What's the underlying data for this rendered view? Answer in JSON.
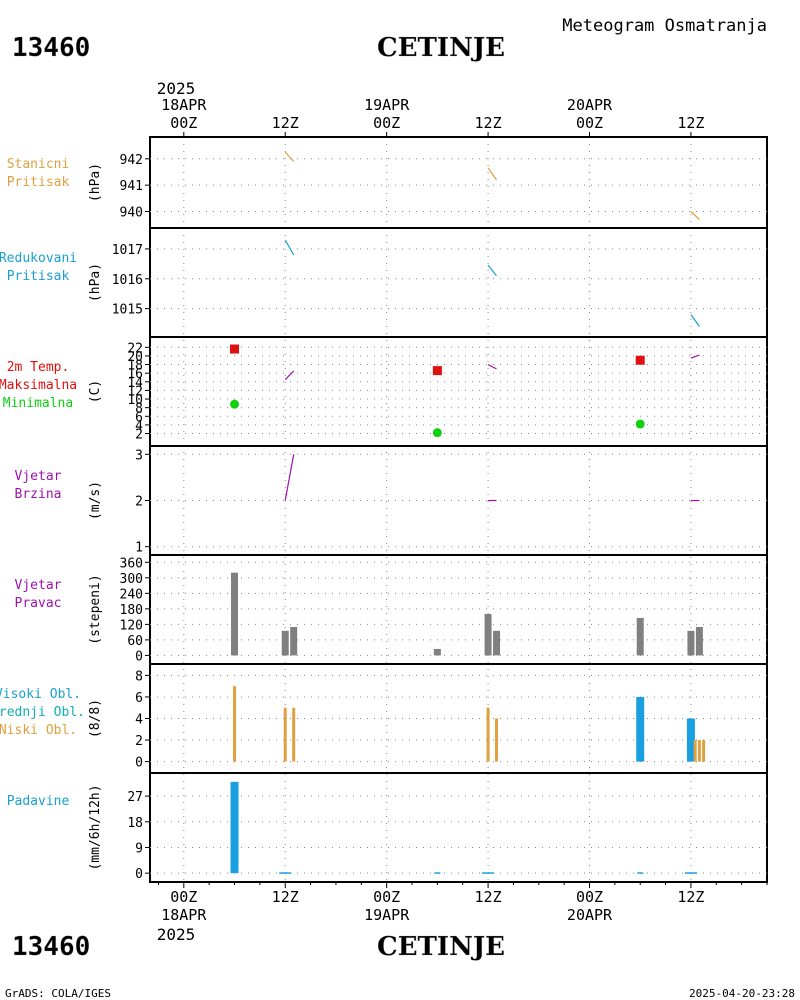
{
  "header": {
    "title": "Meteogram Osmatranja",
    "station_id": "13460",
    "station_name": "CETINJE"
  },
  "footer": {
    "station_id": "13460",
    "station_name": "CETINJE",
    "credit": "GrADS: COLA/IGES",
    "timestamp": "2025-04-20-23:28"
  },
  "time_axis": {
    "top_year": "2025",
    "bottom_year": "2025",
    "ticks": [
      {
        "hour": 0,
        "label": "00Z",
        "date": "18APR"
      },
      {
        "hour": 12,
        "label": "12Z",
        "date": ""
      },
      {
        "hour": 24,
        "label": "00Z",
        "date": "19APR"
      },
      {
        "hour": 36,
        "label": "12Z",
        "date": ""
      },
      {
        "hour": 48,
        "label": "00Z",
        "date": "20APR"
      },
      {
        "hour": 60,
        "label": "12Z",
        "date": ""
      }
    ]
  },
  "colors": {
    "orange": "#e0a040",
    "cyan": "#1aa0d0",
    "red": "#e01010",
    "green": "#10d010",
    "purple": "#a010b0",
    "gray": "#808080",
    "blue": "#1aa0e0",
    "teal": "#10b0b0"
  },
  "chart_data": [
    {
      "type": "line",
      "labels": [
        {
          "text": "Stanicni",
          "color": "#e0a040"
        },
        {
          "text": "Pritisak",
          "color": "#e0a040"
        }
      ],
      "ylabel": "(hPa)",
      "ylim": [
        939.6,
        942.6
      ],
      "yticks": [
        940,
        941,
        942
      ],
      "series": [
        {
          "color": "#e0a040",
          "segments": [
            [
              [
                12,
                942.25
              ],
              [
                13,
                941.9
              ]
            ],
            [
              [
                36,
                941.65
              ],
              [
                37,
                941.2
              ]
            ],
            [
              [
                60,
                940.0
              ],
              [
                61,
                939.7
              ]
            ]
          ]
        }
      ]
    },
    {
      "type": "line",
      "labels": [
        {
          "text": "Redukovani",
          "color": "#1aa0d0"
        },
        {
          "text": "Pritisak",
          "color": "#1aa0d0"
        }
      ],
      "ylabel": "(hPa)",
      "ylim": [
        1014.25,
        1017.5
      ],
      "yticks": [
        1015,
        1016,
        1017
      ],
      "series": [
        {
          "color": "#1aa0d0",
          "segments": [
            [
              [
                12,
                1017.3
              ],
              [
                13,
                1016.8
              ]
            ],
            [
              [
                36,
                1016.45
              ],
              [
                37,
                1016.1
              ]
            ],
            [
              [
                60,
                1014.8
              ],
              [
                61,
                1014.4
              ]
            ]
          ]
        }
      ]
    },
    {
      "type": "scatter",
      "labels": [
        {
          "text": "2m Temp.",
          "color": "#e01010"
        },
        {
          "text": "Maksimalna",
          "color": "#e01010"
        },
        {
          "text": "Minimalna",
          "color": "#10d010"
        }
      ],
      "ylabel": "(C)",
      "ylim": [
        0.5,
        23
      ],
      "yticks": [
        2,
        4,
        6,
        8,
        10,
        12,
        14,
        16,
        18,
        20,
        22
      ],
      "series": [
        {
          "color": "#a010b0",
          "segments": [
            [
              [
                12,
                14.5
              ],
              [
                13,
                16.5
              ]
            ],
            [
              [
                36,
                18
              ],
              [
                37,
                17
              ]
            ],
            [
              [
                60,
                19.5
              ],
              [
                61,
                20.2
              ]
            ]
          ]
        }
      ],
      "markers": [
        {
          "name": "Maksimalna",
          "shape": "square",
          "color": "#e01010",
          "points": [
            [
              6,
              21.6
            ],
            [
              30,
              16.6
            ],
            [
              54,
              19.0
            ]
          ]
        },
        {
          "name": "Minimalna",
          "shape": "circle",
          "color": "#10d010",
          "points": [
            [
              6,
              8.8
            ],
            [
              30,
              2.2
            ],
            [
              54,
              4.2
            ]
          ]
        }
      ]
    },
    {
      "type": "line",
      "labels": [
        {
          "text": "Vjetar",
          "color": "#a010b0"
        },
        {
          "text": "Brzina",
          "color": "#a010b0"
        }
      ],
      "ylabel": "(m/s)",
      "ylim": [
        0.95,
        3.05
      ],
      "yticks": [
        1,
        2,
        3
      ],
      "series": [
        {
          "color": "#a010b0",
          "segments": [
            [
              [
                12,
                2.0
              ],
              [
                13,
                3.0
              ]
            ],
            [
              [
                36,
                2.0
              ],
              [
                37,
                2.0
              ]
            ],
            [
              [
                60,
                2.0
              ],
              [
                61,
                2.0
              ]
            ]
          ]
        }
      ]
    },
    {
      "type": "bar",
      "labels": [
        {
          "text": "Vjetar",
          "color": "#a010b0"
        },
        {
          "text": "Pravac",
          "color": "#a010b0"
        }
      ],
      "ylabel": "(stepeni)",
      "ylim": [
        -10,
        365
      ],
      "yticks": [
        0,
        60,
        120,
        180,
        240,
        300,
        360
      ],
      "ytick_labels": [
        "0",
        "60",
        "120",
        "180",
        "240",
        "300",
        "360"
      ],
      "bars": [
        {
          "x": 6,
          "value": 320,
          "color": "#808080"
        },
        {
          "x": 12,
          "value": 95,
          "color": "#808080"
        },
        {
          "x": 13,
          "value": 110,
          "color": "#808080"
        },
        {
          "x": 30,
          "value": 25,
          "color": "#808080"
        },
        {
          "x": 36,
          "value": 160,
          "color": "#808080"
        },
        {
          "x": 37,
          "value": 95,
          "color": "#808080"
        },
        {
          "x": 54,
          "value": 145,
          "color": "#808080"
        },
        {
          "x": 60,
          "value": 95,
          "color": "#808080"
        },
        {
          "x": 61,
          "value": 110,
          "color": "#808080"
        }
      ]
    },
    {
      "type": "bar",
      "labels": [
        {
          "text": "Visoki Obl.",
          "color": "#1aa0d0"
        },
        {
          "text": "Srednji Obl.",
          "color": "#10b0b0"
        },
        {
          "text": "Niski Obl.",
          "color": "#e0a040"
        }
      ],
      "ylabel": "(8/8)",
      "ylim": [
        -0.5,
        8.5
      ],
      "yticks": [
        0,
        2,
        4,
        6,
        8
      ],
      "bars": [
        {
          "x": 6,
          "value": 7,
          "color": "#e0a040",
          "width": 3
        },
        {
          "x": 12,
          "value": 5,
          "color": "#e0a040",
          "width": 3
        },
        {
          "x": 13,
          "value": 5,
          "color": "#e0a040",
          "width": 3
        },
        {
          "x": 36,
          "value": 5,
          "color": "#e0a040",
          "width": 3
        },
        {
          "x": 37,
          "value": 4,
          "color": "#e0a040",
          "width": 3
        },
        {
          "x": 54,
          "value": 6,
          "color": "#1aa0e0",
          "width": 8
        },
        {
          "x": 60,
          "value": 4,
          "color": "#1aa0e0",
          "width": 8
        },
        {
          "x": 60.5,
          "value": 2,
          "color": "#e0a040",
          "width": 3
        },
        {
          "x": 61,
          "value": 2,
          "color": "#e0a040",
          "width": 3
        },
        {
          "x": 61.5,
          "value": 2,
          "color": "#e0a040",
          "width": 3
        }
      ]
    },
    {
      "type": "bar",
      "labels": [
        {
          "text": "Padavine",
          "color": "#1aa0d0"
        }
      ],
      "ylabel": "(mm/6h/12h)",
      "ylim": [
        -1,
        33
      ],
      "yticks": [
        0,
        9,
        18,
        27
      ],
      "bars": [
        {
          "x": 6,
          "value": 32,
          "color": "#1aa0e0",
          "width": 8
        },
        {
          "x": 12,
          "value": 0.3,
          "color": "#1aa0e0",
          "width": 12
        },
        {
          "x": 30,
          "value": 0.3,
          "color": "#1aa0e0",
          "width": 6
        },
        {
          "x": 36,
          "value": 0.3,
          "color": "#1aa0e0",
          "width": 12
        },
        {
          "x": 54,
          "value": 0.3,
          "color": "#1aa0e0",
          "width": 6
        },
        {
          "x": 60,
          "value": 0.3,
          "color": "#1aa0e0",
          "width": 12
        }
      ]
    }
  ]
}
